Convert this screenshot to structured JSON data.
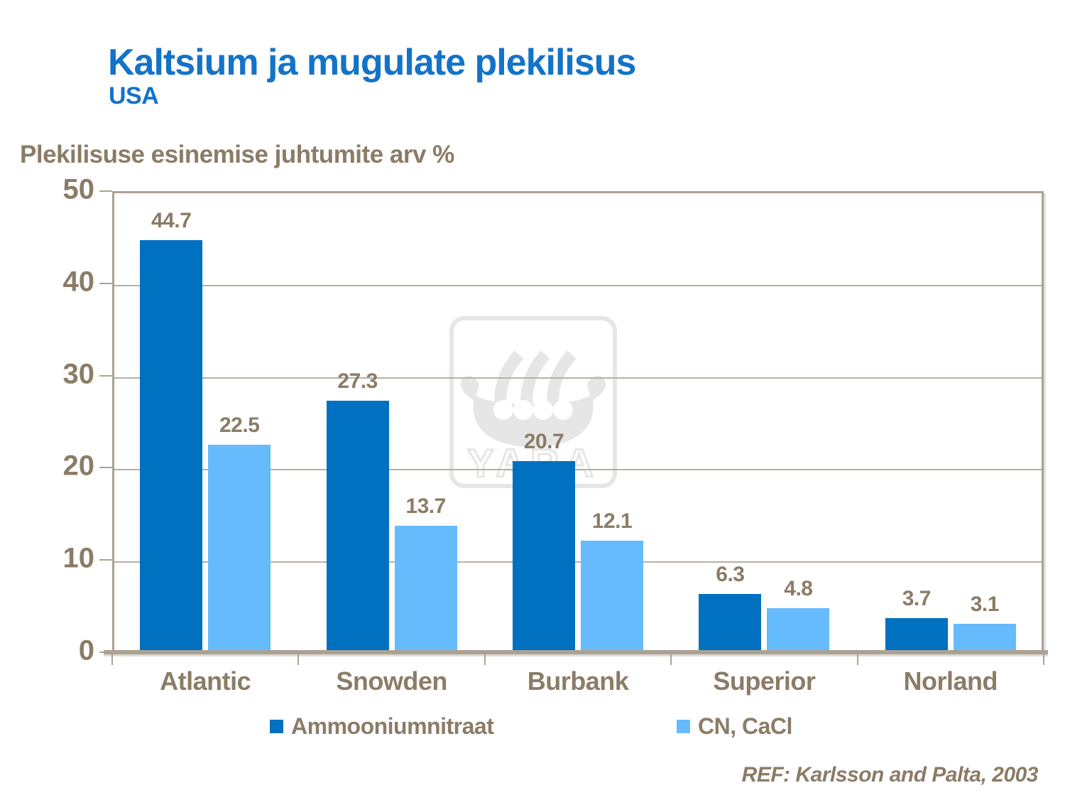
{
  "header": {
    "title": "Kaltsium ja mugulate plekilisus",
    "subtitle": "USA"
  },
  "chart_data": {
    "type": "bar",
    "title": "Plekilisuse esinemise juhtumite arv %",
    "categories": [
      "Atlantic",
      "Snowden",
      "Burbank",
      "Superior",
      "Norland"
    ],
    "series": [
      {
        "name": "Ammooniumnitraat",
        "color": "#0070C0",
        "values": [
          44.7,
          27.3,
          20.7,
          6.3,
          3.7
        ]
      },
      {
        "name": "CN, CaCl",
        "color": "#66BBFC",
        "values": [
          22.5,
          13.7,
          12.1,
          4.8,
          3.1
        ]
      }
    ],
    "xlabel": "",
    "ylabel": "Plekilisuse esinemise juhtumite arv %",
    "ylim": [
      0,
      50
    ],
    "yticks": [
      0,
      10,
      20,
      30,
      40,
      50
    ],
    "grid": true,
    "legend_position": "bottom",
    "value_labels_shown": true
  },
  "watermark": {
    "icon": "yara-viking-ship-logo",
    "text": "YARA"
  },
  "footer": {
    "reference": "REF: Karlsson and Palta, 2003"
  },
  "colors": {
    "title_blue": "#1373C8",
    "text_taupe": "#8B7C66",
    "series_dark_blue": "#0070C0",
    "series_light_blue": "#66BBFC",
    "gridline": "#B9B0A2",
    "axis": "#ACA292",
    "watermark_gray": "#E6E6E6",
    "background": "#FFFFFF"
  }
}
